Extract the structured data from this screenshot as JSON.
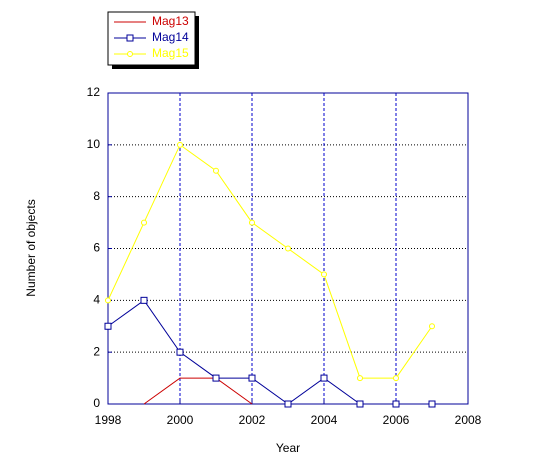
{
  "chart_data": {
    "type": "line",
    "x": [
      1998,
      1999,
      2000,
      2001,
      2002,
      2003,
      2004,
      2005,
      2006,
      2007
    ],
    "series": [
      {
        "name": "Mag13",
        "color": "#cc0000",
        "marker": "none",
        "values": [
          null,
          0,
          1,
          1,
          0,
          null,
          null,
          null,
          null,
          null
        ]
      },
      {
        "name": "Mag14",
        "color": "#000099",
        "marker": "square",
        "values": [
          3,
          4,
          2,
          1,
          1,
          0,
          1,
          0,
          0,
          0
        ]
      },
      {
        "name": "Mag15",
        "color": "#ffff00",
        "marker": "circle",
        "values": [
          4,
          7,
          10,
          9,
          7,
          6,
          5,
          1,
          1,
          3
        ]
      }
    ],
    "xlabel": "Year",
    "ylabel": "Number of objects",
    "xlim": [
      1998,
      2008
    ],
    "xticks": [
      1998,
      2000,
      2002,
      2004,
      2006,
      2008
    ],
    "ylim": [
      0,
      12
    ],
    "yticks": [
      0,
      2,
      4,
      6,
      8,
      10,
      12
    ],
    "grid": true,
    "legend": "top-left"
  }
}
